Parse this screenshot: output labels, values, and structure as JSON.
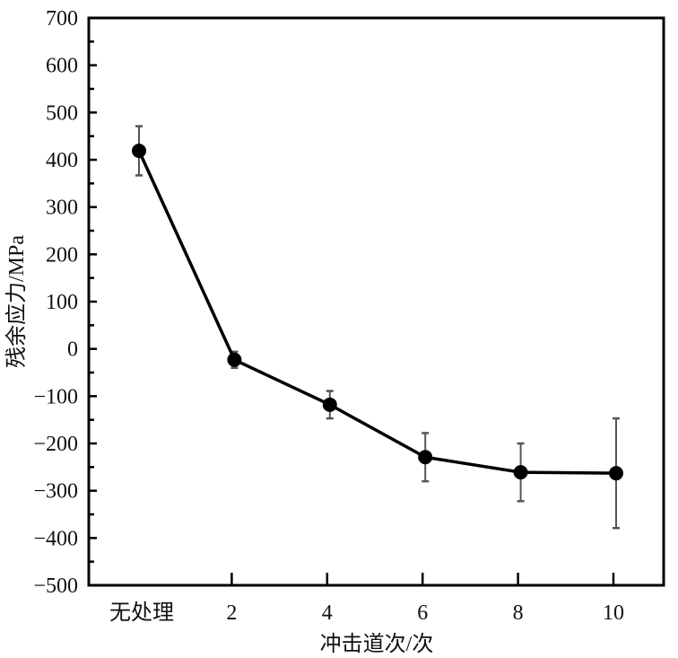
{
  "chart_data": {
    "type": "line",
    "title": "",
    "xlabel": "冲击道次/次",
    "ylabel": "残余应力/MPa",
    "categories": [
      "无处理",
      "2",
      "4",
      "6",
      "8",
      "10"
    ],
    "ylim": [
      -500,
      700
    ],
    "yticks": [
      -500,
      -400,
      -300,
      -200,
      -100,
      0,
      100,
      200,
      300,
      400,
      500,
      600,
      700
    ],
    "grid": false,
    "series": [
      {
        "values": [
          419,
          -23,
          -118,
          -229,
          -261,
          -263
        ],
        "errors": [
          52,
          17,
          29,
          51,
          61,
          116
        ],
        "color": "#000000",
        "marker": "circle"
      }
    ]
  }
}
